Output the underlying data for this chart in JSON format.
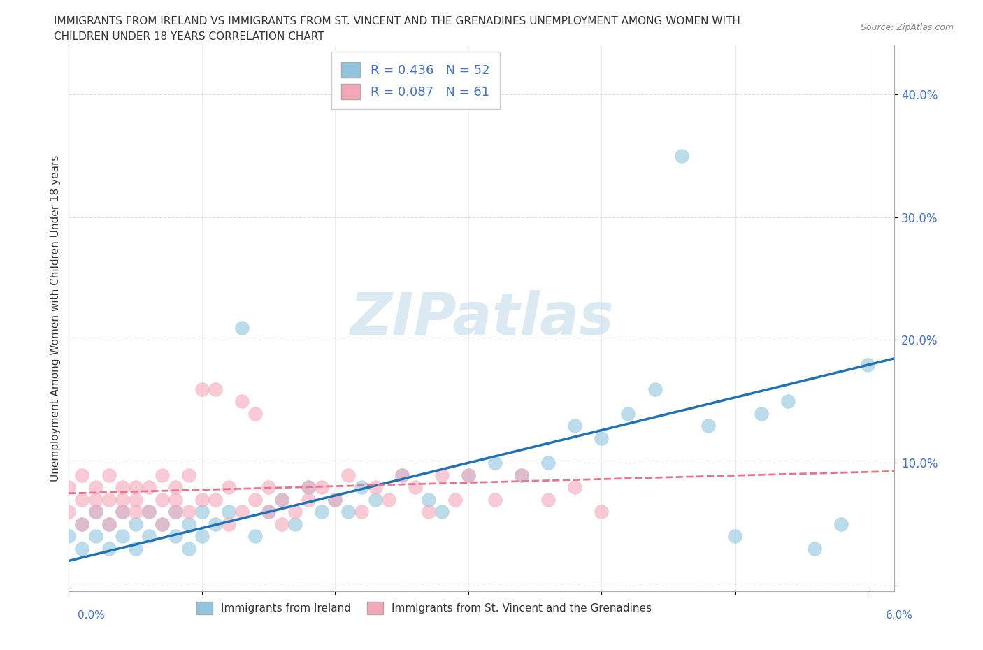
{
  "title_line1": "IMMIGRANTS FROM IRELAND VS IMMIGRANTS FROM ST. VINCENT AND THE GRENADINES UNEMPLOYMENT AMONG WOMEN WITH",
  "title_line2": "CHILDREN UNDER 18 YEARS CORRELATION CHART",
  "source": "Source: ZipAtlas.com",
  "ylabel": "Unemployment Among Women with Children Under 18 years",
  "xlim": [
    0.0,
    0.062
  ],
  "ylim": [
    -0.005,
    0.44
  ],
  "yticks": [
    0.0,
    0.1,
    0.2,
    0.3,
    0.4
  ],
  "ytick_labels": [
    "",
    "10.0%",
    "20.0%",
    "30.0%",
    "40.0%"
  ],
  "xticks": [
    0.0,
    0.01,
    0.02,
    0.03,
    0.04,
    0.05,
    0.06
  ],
  "ireland_color": "#92C5DE",
  "ireland_line_color": "#2171B5",
  "svg_color": "#F4A7B9",
  "svg_line_color": "#E8748A",
  "ireland_R": 0.436,
  "ireland_N": 52,
  "svg_R": 0.087,
  "svg_N": 61,
  "ireland_line_x0": 0.0,
  "ireland_line_y0": 0.02,
  "ireland_line_x1": 0.062,
  "ireland_line_y1": 0.185,
  "svg_line_x0": 0.0,
  "svg_line_y0": 0.075,
  "svg_line_x1": 0.062,
  "svg_line_y1": 0.093,
  "watermark": "ZIPatlas",
  "legend_label_ireland": "Immigrants from Ireland",
  "legend_label_svg": "Immigrants from St. Vincent and the Grenadines",
  "background_color": "#FFFFFF",
  "grid_color": "#CCCCCC",
  "ireland_x": [
    0.0,
    0.001,
    0.001,
    0.002,
    0.002,
    0.003,
    0.003,
    0.004,
    0.004,
    0.005,
    0.005,
    0.006,
    0.006,
    0.007,
    0.008,
    0.008,
    0.009,
    0.009,
    0.01,
    0.01,
    0.011,
    0.012,
    0.013,
    0.014,
    0.015,
    0.016,
    0.017,
    0.018,
    0.019,
    0.02,
    0.021,
    0.022,
    0.023,
    0.025,
    0.027,
    0.028,
    0.03,
    0.032,
    0.034,
    0.036,
    0.038,
    0.04,
    0.042,
    0.044,
    0.046,
    0.048,
    0.05,
    0.052,
    0.054,
    0.056,
    0.058,
    0.06
  ],
  "ireland_y": [
    0.04,
    0.05,
    0.03,
    0.06,
    0.04,
    0.05,
    0.03,
    0.06,
    0.04,
    0.05,
    0.03,
    0.06,
    0.04,
    0.05,
    0.04,
    0.06,
    0.05,
    0.03,
    0.06,
    0.04,
    0.05,
    0.06,
    0.21,
    0.04,
    0.06,
    0.07,
    0.05,
    0.08,
    0.06,
    0.07,
    0.06,
    0.08,
    0.07,
    0.09,
    0.07,
    0.06,
    0.09,
    0.1,
    0.09,
    0.1,
    0.13,
    0.12,
    0.14,
    0.16,
    0.35,
    0.13,
    0.04,
    0.14,
    0.15,
    0.03,
    0.05,
    0.18
  ],
  "svg_x": [
    0.0,
    0.0,
    0.001,
    0.001,
    0.001,
    0.002,
    0.002,
    0.002,
    0.003,
    0.003,
    0.003,
    0.004,
    0.004,
    0.004,
    0.005,
    0.005,
    0.005,
    0.006,
    0.006,
    0.007,
    0.007,
    0.007,
    0.008,
    0.008,
    0.008,
    0.009,
    0.009,
    0.01,
    0.01,
    0.011,
    0.011,
    0.012,
    0.012,
    0.013,
    0.013,
    0.014,
    0.014,
    0.015,
    0.015,
    0.016,
    0.016,
    0.017,
    0.018,
    0.018,
    0.019,
    0.02,
    0.021,
    0.022,
    0.023,
    0.024,
    0.025,
    0.026,
    0.027,
    0.028,
    0.029,
    0.03,
    0.032,
    0.034,
    0.036,
    0.038,
    0.04
  ],
  "svg_y": [
    0.06,
    0.08,
    0.07,
    0.09,
    0.05,
    0.07,
    0.08,
    0.06,
    0.07,
    0.09,
    0.05,
    0.06,
    0.08,
    0.07,
    0.06,
    0.08,
    0.07,
    0.06,
    0.08,
    0.07,
    0.09,
    0.05,
    0.06,
    0.08,
    0.07,
    0.06,
    0.09,
    0.07,
    0.16,
    0.07,
    0.16,
    0.08,
    0.05,
    0.06,
    0.15,
    0.07,
    0.14,
    0.06,
    0.08,
    0.05,
    0.07,
    0.06,
    0.08,
    0.07,
    0.08,
    0.07,
    0.09,
    0.06,
    0.08,
    0.07,
    0.09,
    0.08,
    0.06,
    0.09,
    0.07,
    0.09,
    0.07,
    0.09,
    0.07,
    0.08,
    0.06
  ]
}
